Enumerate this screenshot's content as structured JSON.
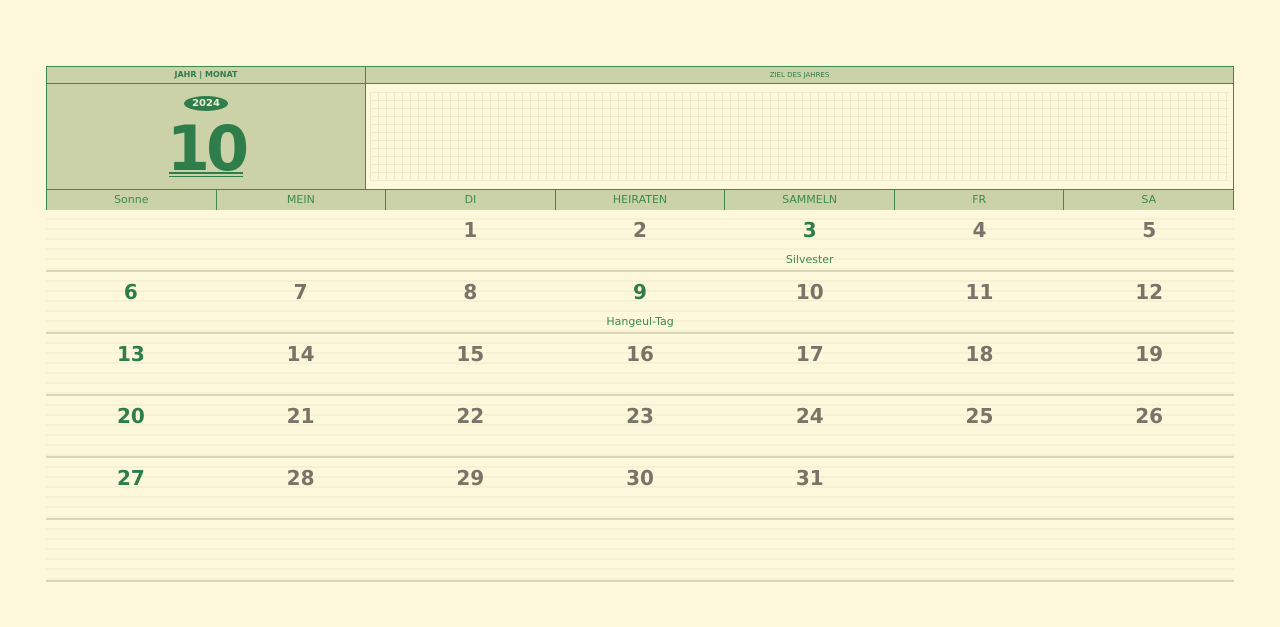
{
  "header": {
    "year_month_label": "JAHR | MONAT",
    "goal_label": "ZIEL DES JAHRES",
    "year": "2024",
    "month": "10"
  },
  "weekdays": [
    "Sonne",
    "MEIN",
    "DI",
    "HEIRATEN",
    "SAMMELN",
    "FR",
    "SA"
  ],
  "colors": {
    "accent": "#2e7d4a",
    "panel": "#cbd2a8",
    "background": "#fdf8dc",
    "day_number": "#7a7468"
  },
  "weeks": [
    [
      {
        "d": ""
      },
      {
        "d": ""
      },
      {
        "d": "1"
      },
      {
        "d": "2"
      },
      {
        "d": "3",
        "holiday": "Silvester",
        "green": true
      },
      {
        "d": "4"
      },
      {
        "d": "5"
      }
    ],
    [
      {
        "d": "6",
        "green": true
      },
      {
        "d": "7"
      },
      {
        "d": "8"
      },
      {
        "d": "9",
        "holiday": "Hangeul-Tag",
        "green": true
      },
      {
        "d": "10"
      },
      {
        "d": "11"
      },
      {
        "d": "12"
      }
    ],
    [
      {
        "d": "13",
        "green": true
      },
      {
        "d": "14"
      },
      {
        "d": "15"
      },
      {
        "d": "16"
      },
      {
        "d": "17"
      },
      {
        "d": "18"
      },
      {
        "d": "19"
      }
    ],
    [
      {
        "d": "20",
        "green": true
      },
      {
        "d": "21"
      },
      {
        "d": "22"
      },
      {
        "d": "23"
      },
      {
        "d": "24"
      },
      {
        "d": "25"
      },
      {
        "d": "26"
      }
    ],
    [
      {
        "d": "27",
        "green": true
      },
      {
        "d": "28"
      },
      {
        "d": "29"
      },
      {
        "d": "30"
      },
      {
        "d": "31"
      },
      {
        "d": ""
      },
      {
        "d": ""
      }
    ],
    [
      {
        "d": ""
      },
      {
        "d": ""
      },
      {
        "d": ""
      },
      {
        "d": ""
      },
      {
        "d": ""
      },
      {
        "d": ""
      },
      {
        "d": ""
      }
    ]
  ]
}
